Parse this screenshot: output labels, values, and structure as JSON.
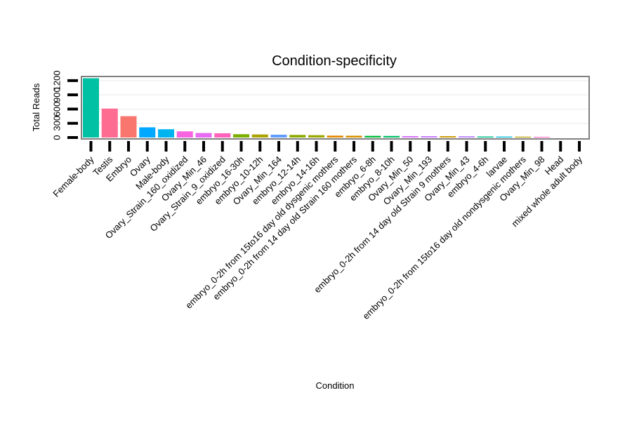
{
  "chart_data": {
    "type": "bar",
    "title": "Condition-specificity",
    "xlabel": "Condition",
    "ylabel": "Total Reads",
    "ylim": [
      0,
      1300
    ],
    "yticks": [
      0,
      300,
      600,
      900,
      1200
    ],
    "ytick_labels": [
      "0",
      "300",
      "600",
      "900",
      "1200"
    ],
    "categories": [
      "Female-body",
      "Testis",
      "Embryo",
      "Ovary",
      "Male-body",
      "Ovary_Strain_160_oxidized",
      "Ovary_Min_46",
      "Ovary_Strain_9_oxidized",
      "embryo_16-30h",
      "embryo_10-12h",
      "Ovary_Min_164",
      "embryo_12-14h",
      "embryo_14-16h",
      "embryo_0-2h from 15to16 day old dysgenic mothers",
      "embryo_0-2h from 14 day old Strain 160 mothers",
      "embryo_6-8h",
      "embryo_8-10h",
      "Ovary_Min_50",
      "Ovary_Min_193",
      "embryo_0-2h from 14 day old Strain 9 mothers",
      "Ovary_Min_43",
      "embryo_4-6h",
      "larvae",
      "embryo_0-2h from 15to16 day old nondysgenic mothers",
      "Ovary_Min_98",
      "Head",
      "mixed whole adult body"
    ],
    "values": [
      1250,
      610,
      450,
      215,
      175,
      130,
      95,
      90,
      70,
      65,
      60,
      55,
      50,
      40,
      38,
      35,
      33,
      30,
      29,
      28,
      27,
      22,
      20,
      18,
      15,
      0,
      0
    ],
    "colors": [
      "#00C1A3",
      "#FF6C91",
      "#F8766D",
      "#00A9FF",
      "#00B4F0",
      "#F763E0",
      "#E76BF3",
      "#FF62BC",
      "#7CAE00",
      "#ABA300",
      "#619CFF",
      "#8CAB00",
      "#9CA700",
      "#E58700",
      "#D89000",
      "#00BA38",
      "#00BE67",
      "#DB72FB",
      "#C77CFF",
      "#C99800",
      "#B983FF",
      "#00C08B",
      "#00BCD8",
      "#BB9D00",
      "#FF61C3",
      "#00BFC4",
      "#F8766D"
    ],
    "grid": true,
    "legend": "none"
  }
}
